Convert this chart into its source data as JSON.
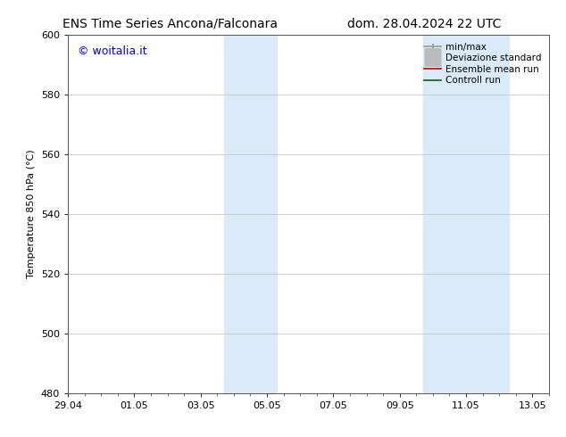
{
  "title_left": "ENS Time Series Ancona/Falconara",
  "title_right": "dom. 28.04.2024 22 UTC",
  "ylabel": "Temperature 850 hPa (°C)",
  "ylim": [
    480,
    600
  ],
  "yticks": [
    480,
    500,
    520,
    540,
    560,
    580,
    600
  ],
  "xtick_labels": [
    "29.04",
    "01.05",
    "03.05",
    "05.05",
    "07.05",
    "09.05",
    "11.05",
    "13.05"
  ],
  "xtick_positions": [
    0,
    2,
    4,
    6,
    8,
    10,
    12,
    14
  ],
  "watermark": "© woitalia.it",
  "watermark_color": "#0000dd",
  "background_color": "#ffffff",
  "plot_bg_color": "#ffffff",
  "shaded_bands": [
    {
      "x_start": 4.7,
      "x_end": 6.3,
      "color": "#daeaf8"
    },
    {
      "x_start": 10.7,
      "x_end": 13.3,
      "color": "#daeaf8"
    }
  ],
  "legend_items": [
    {
      "label": "min/max",
      "color": "#999999",
      "lw": 1.2,
      "style": "line_with_caps"
    },
    {
      "label": "Deviazione standard",
      "color": "#bbbbbb",
      "lw": 5,
      "style": "thick_line"
    },
    {
      "label": "Ensemble mean run",
      "color": "#cc0000",
      "lw": 1.2,
      "style": "line"
    },
    {
      "label": "Controll run",
      "color": "#006600",
      "lw": 1.2,
      "style": "line"
    }
  ],
  "font_size_title": 10,
  "font_size_ticks": 8,
  "font_size_legend": 7.5,
  "font_size_ylabel": 8,
  "font_size_watermark": 9,
  "grid_color": "#bbbbbb",
  "grid_lw": 0.5,
  "spine_color": "#555555"
}
